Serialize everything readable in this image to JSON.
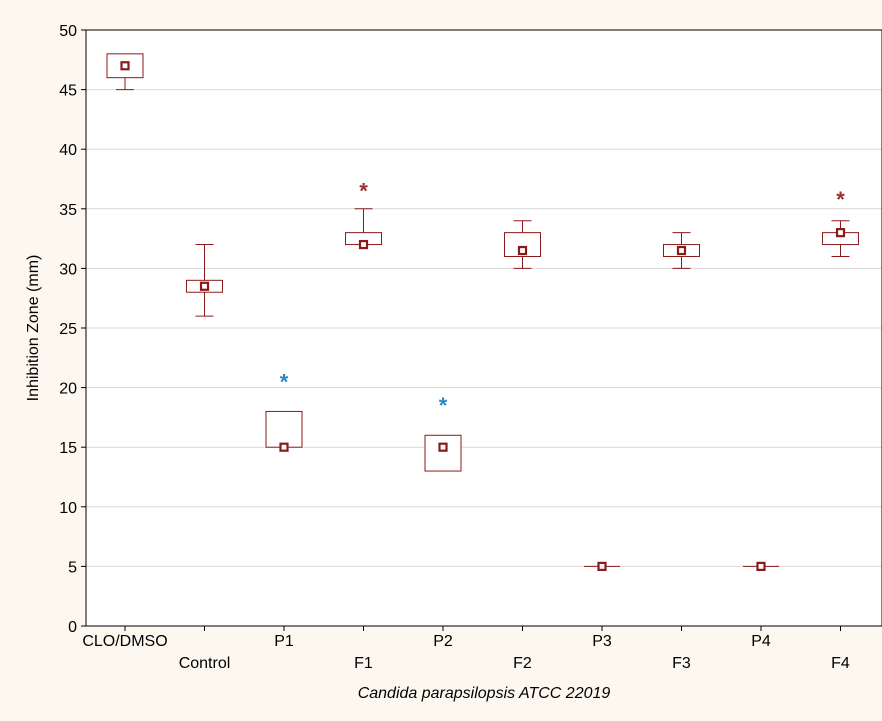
{
  "chart_data": {
    "type": "box",
    "xlabel": "Candida parapsilopsis ATCC 22019",
    "ylabel": "Inhibition Zone (mm)",
    "ylim": [
      0,
      50
    ],
    "yticks": [
      0,
      5,
      10,
      15,
      20,
      25,
      30,
      35,
      40,
      45,
      50
    ],
    "grid": true,
    "categories": [
      "CLO/DMSO",
      "Control",
      "P1",
      "F1",
      "P2",
      "F2",
      "P3",
      "F3",
      "P4",
      "F4"
    ],
    "boxes": [
      {
        "category": "CLO/DMSO",
        "median": 47,
        "q1": 46,
        "q3": 48,
        "min": 45,
        "max": 48
      },
      {
        "category": "Control",
        "median": 28.5,
        "q1": 28,
        "q3": 29,
        "min": 26,
        "max": 32
      },
      {
        "category": "P1",
        "median": 15,
        "q1": 15,
        "q3": 18,
        "min": 15,
        "max": 18
      },
      {
        "category": "F1",
        "median": 32,
        "q1": 32,
        "q3": 33,
        "min": 32,
        "max": 35
      },
      {
        "category": "P2",
        "median": 15,
        "q1": 13,
        "q3": 16,
        "min": 13,
        "max": 16
      },
      {
        "category": "F2",
        "median": 31.5,
        "q1": 31,
        "q3": 33,
        "min": 30,
        "max": 34
      },
      {
        "category": "P3",
        "median": 5,
        "q1": 5,
        "q3": 5,
        "min": 5,
        "max": 5
      },
      {
        "category": "F3",
        "median": 31.5,
        "q1": 31,
        "q3": 32,
        "min": 30,
        "max": 33
      },
      {
        "category": "P4",
        "median": 5,
        "q1": 5,
        "q3": 5,
        "min": 5,
        "max": 5
      },
      {
        "category": "F4",
        "median": 33,
        "q1": 32,
        "q3": 33,
        "min": 31,
        "max": 34
      }
    ],
    "annotations": [
      {
        "category": "P1",
        "text": "*",
        "y": 20.7,
        "color": "#2b86c5"
      },
      {
        "category": "F1",
        "text": "*",
        "y": 36.7,
        "color": "#a0302e"
      },
      {
        "category": "P2",
        "text": "*",
        "y": 18.7,
        "color": "#2b86c5"
      },
      {
        "category": "F4",
        "text": "*",
        "y": 36.0,
        "color": "#a0302e"
      }
    ],
    "colors": {
      "box": "#8b1a1a",
      "grid": "#d9d9d9",
      "background": "#fdf8ef",
      "plot_background": "#ffffff"
    }
  }
}
